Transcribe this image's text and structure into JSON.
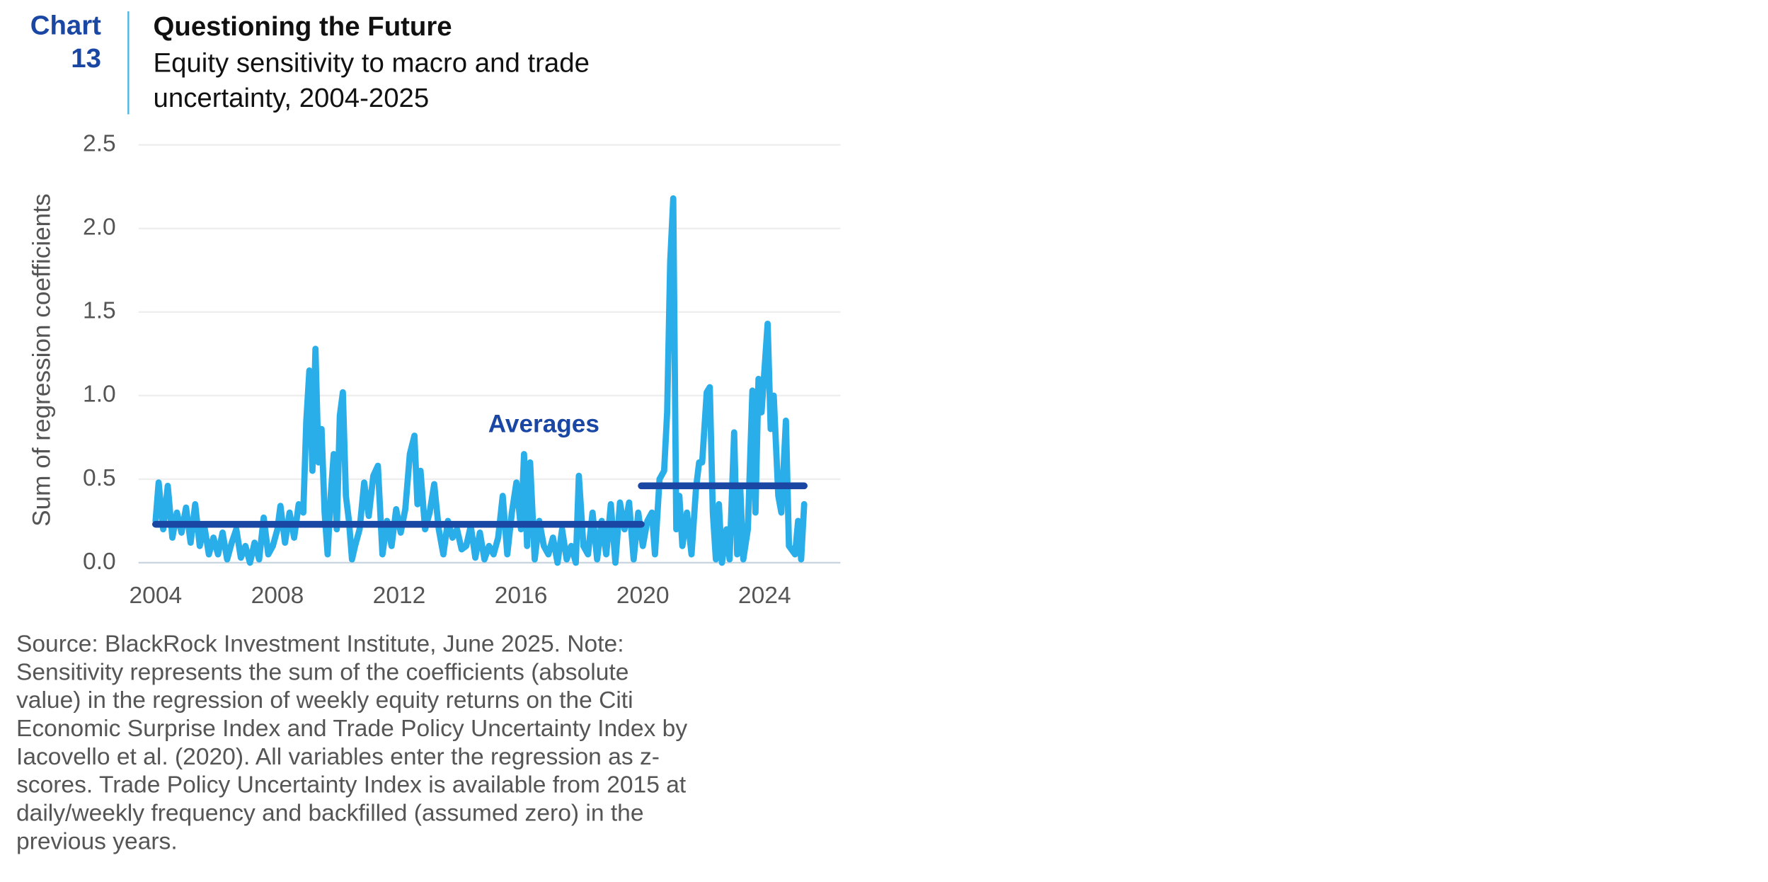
{
  "chart_data": {
    "type": "line",
    "chart_label": [
      "Chart",
      "13"
    ],
    "title": "Questioning the Future",
    "subtitle": [
      "Equity sensitivity to macro and trade",
      "uncertainty, 2004-2025"
    ],
    "y_label": "Sum of regression coefficients",
    "annotation": "Averages",
    "xlim": [
      2003.44,
      2026.49
    ],
    "xticks": [
      2004,
      2008,
      2012,
      2016,
      2020,
      2024
    ],
    "ylim": [
      0,
      2.5
    ],
    "yticks": [
      {
        "value": 0,
        "label": "0.0"
      },
      {
        "value": 0.5,
        "label": "0.5"
      },
      {
        "value": 1,
        "label": "1.0"
      },
      {
        "value": 1.5,
        "label": "1.5"
      },
      {
        "value": 2,
        "label": "2.0"
      },
      {
        "value": 2.5,
        "label": "2.5"
      }
    ],
    "grid": true,
    "series": [
      {
        "color": "#29aeea",
        "x": [
          2004.0,
          2004.1,
          2004.25,
          2004.4,
          2004.55,
          2004.7,
          2004.85,
          2005.0,
          2005.15,
          2005.3,
          2005.45,
          2005.6,
          2005.75,
          2005.9,
          2006.05,
          2006.2,
          2006.35,
          2006.5,
          2006.65,
          2006.8,
          2006.95,
          2007.1,
          2007.25,
          2007.4,
          2007.55,
          2007.7,
          2007.85,
          2008.0,
          2008.1,
          2008.25,
          2008.4,
          2008.55,
          2008.7,
          2008.85,
          2008.95,
          2009.05,
          2009.15,
          2009.25,
          2009.35,
          2009.45,
          2009.55,
          2009.65,
          2009.75,
          2009.85,
          2009.95,
          2010.05,
          2010.15,
          2010.25,
          2010.35,
          2010.45,
          2010.55,
          2010.7,
          2010.85,
          2011.0,
          2011.15,
          2011.3,
          2011.45,
          2011.6,
          2011.75,
          2011.9,
          2012.05,
          2012.2,
          2012.35,
          2012.5,
          2012.6,
          2012.7,
          2012.85,
          2013.0,
          2013.15,
          2013.3,
          2013.45,
          2013.6,
          2013.75,
          2013.9,
          2014.05,
          2014.2,
          2014.35,
          2014.5,
          2014.65,
          2014.8,
          2014.95,
          2015.1,
          2015.25,
          2015.4,
          2015.55,
          2015.7,
          2015.85,
          2016.0,
          2016.1,
          2016.2,
          2016.3,
          2016.45,
          2016.6,
          2016.75,
          2016.9,
          2017.05,
          2017.2,
          2017.35,
          2017.5,
          2017.65,
          2017.8,
          2017.9,
          2018.05,
          2018.2,
          2018.35,
          2018.5,
          2018.65,
          2018.8,
          2018.95,
          2019.1,
          2019.25,
          2019.4,
          2019.55,
          2019.7,
          2019.85,
          2020.0,
          2020.15,
          2020.3,
          2020.4,
          2020.55,
          2020.7,
          2020.8,
          2020.9,
          2021.0,
          2021.1,
          2021.2,
          2021.3,
          2021.45,
          2021.6,
          2021.75,
          2021.85,
          2021.95,
          2022.1,
          2022.2,
          2022.3,
          2022.4,
          2022.5,
          2022.6,
          2022.75,
          2022.85,
          2023.0,
          2023.1,
          2023.2,
          2023.3,
          2023.45,
          2023.6,
          2023.7,
          2023.8,
          2023.9,
          2024.1,
          2024.2,
          2024.3,
          2024.45,
          2024.55,
          2024.7,
          2024.8,
          2025.0,
          2025.1,
          2025.2,
          2025.3
        ],
        "values": [
          0.25,
          0.48,
          0.2,
          0.46,
          0.15,
          0.3,
          0.18,
          0.33,
          0.12,
          0.35,
          0.1,
          0.22,
          0.05,
          0.15,
          0.05,
          0.18,
          0.02,
          0.12,
          0.2,
          0.03,
          0.1,
          0.0,
          0.12,
          0.02,
          0.27,
          0.05,
          0.1,
          0.2,
          0.34,
          0.12,
          0.3,
          0.15,
          0.35,
          0.3,
          0.85,
          1.15,
          0.55,
          1.28,
          0.6,
          0.8,
          0.3,
          0.05,
          0.4,
          0.65,
          0.2,
          0.88,
          1.02,
          0.4,
          0.25,
          0.02,
          0.1,
          0.2,
          0.48,
          0.28,
          0.52,
          0.58,
          0.05,
          0.25,
          0.1,
          0.32,
          0.18,
          0.32,
          0.65,
          0.76,
          0.35,
          0.55,
          0.2,
          0.3,
          0.47,
          0.2,
          0.05,
          0.25,
          0.15,
          0.2,
          0.08,
          0.1,
          0.22,
          0.03,
          0.18,
          0.02,
          0.1,
          0.05,
          0.15,
          0.4,
          0.05,
          0.3,
          0.48,
          0.2,
          0.65,
          0.1,
          0.6,
          0.02,
          0.25,
          0.1,
          0.05,
          0.15,
          0.0,
          0.2,
          0.02,
          0.1,
          0.0,
          0.52,
          0.1,
          0.05,
          0.3,
          0.02,
          0.25,
          0.05,
          0.35,
          0.0,
          0.36,
          0.2,
          0.36,
          0.02,
          0.3,
          0.1,
          0.25,
          0.3,
          0.05,
          0.5,
          0.55,
          0.9,
          1.8,
          2.18,
          0.2,
          0.4,
          0.1,
          0.3,
          0.05,
          0.45,
          0.6,
          0.6,
          1.02,
          1.05,
          0.3,
          0.02,
          0.35,
          0.0,
          0.2,
          0.02,
          0.78,
          0.05,
          0.45,
          0.02,
          0.2,
          1.03,
          0.3,
          1.1,
          0.9,
          1.43,
          0.8,
          1.0,
          0.4,
          0.3,
          0.85,
          0.1,
          0.05,
          0.25,
          0.02,
          0.35
        ]
      }
    ],
    "averages": {
      "color": "#1a47a3",
      "segments": [
        {
          "x": [
            2004.0,
            2019.95
          ],
          "value": 0.23
        },
        {
          "x": [
            2019.95,
            2025.3
          ],
          "value": 0.46
        }
      ]
    },
    "note": [
      "Source: BlackRock Investment Institute, June 2025. Note:",
      "Sensitivity represents the sum of the coefficients (absolute",
      "value) in the regression of weekly equity returns on the Citi",
      "Economic Surprise Index and Trade Policy Uncertainty Index by",
      "Iacovello et al. (2020). All variables enter the regression as z-",
      "scores. Trade Policy Uncertainty Index is available from 2015 at",
      "daily/weekly frequency and backfilled (assumed zero) in the",
      "previous years."
    ]
  }
}
